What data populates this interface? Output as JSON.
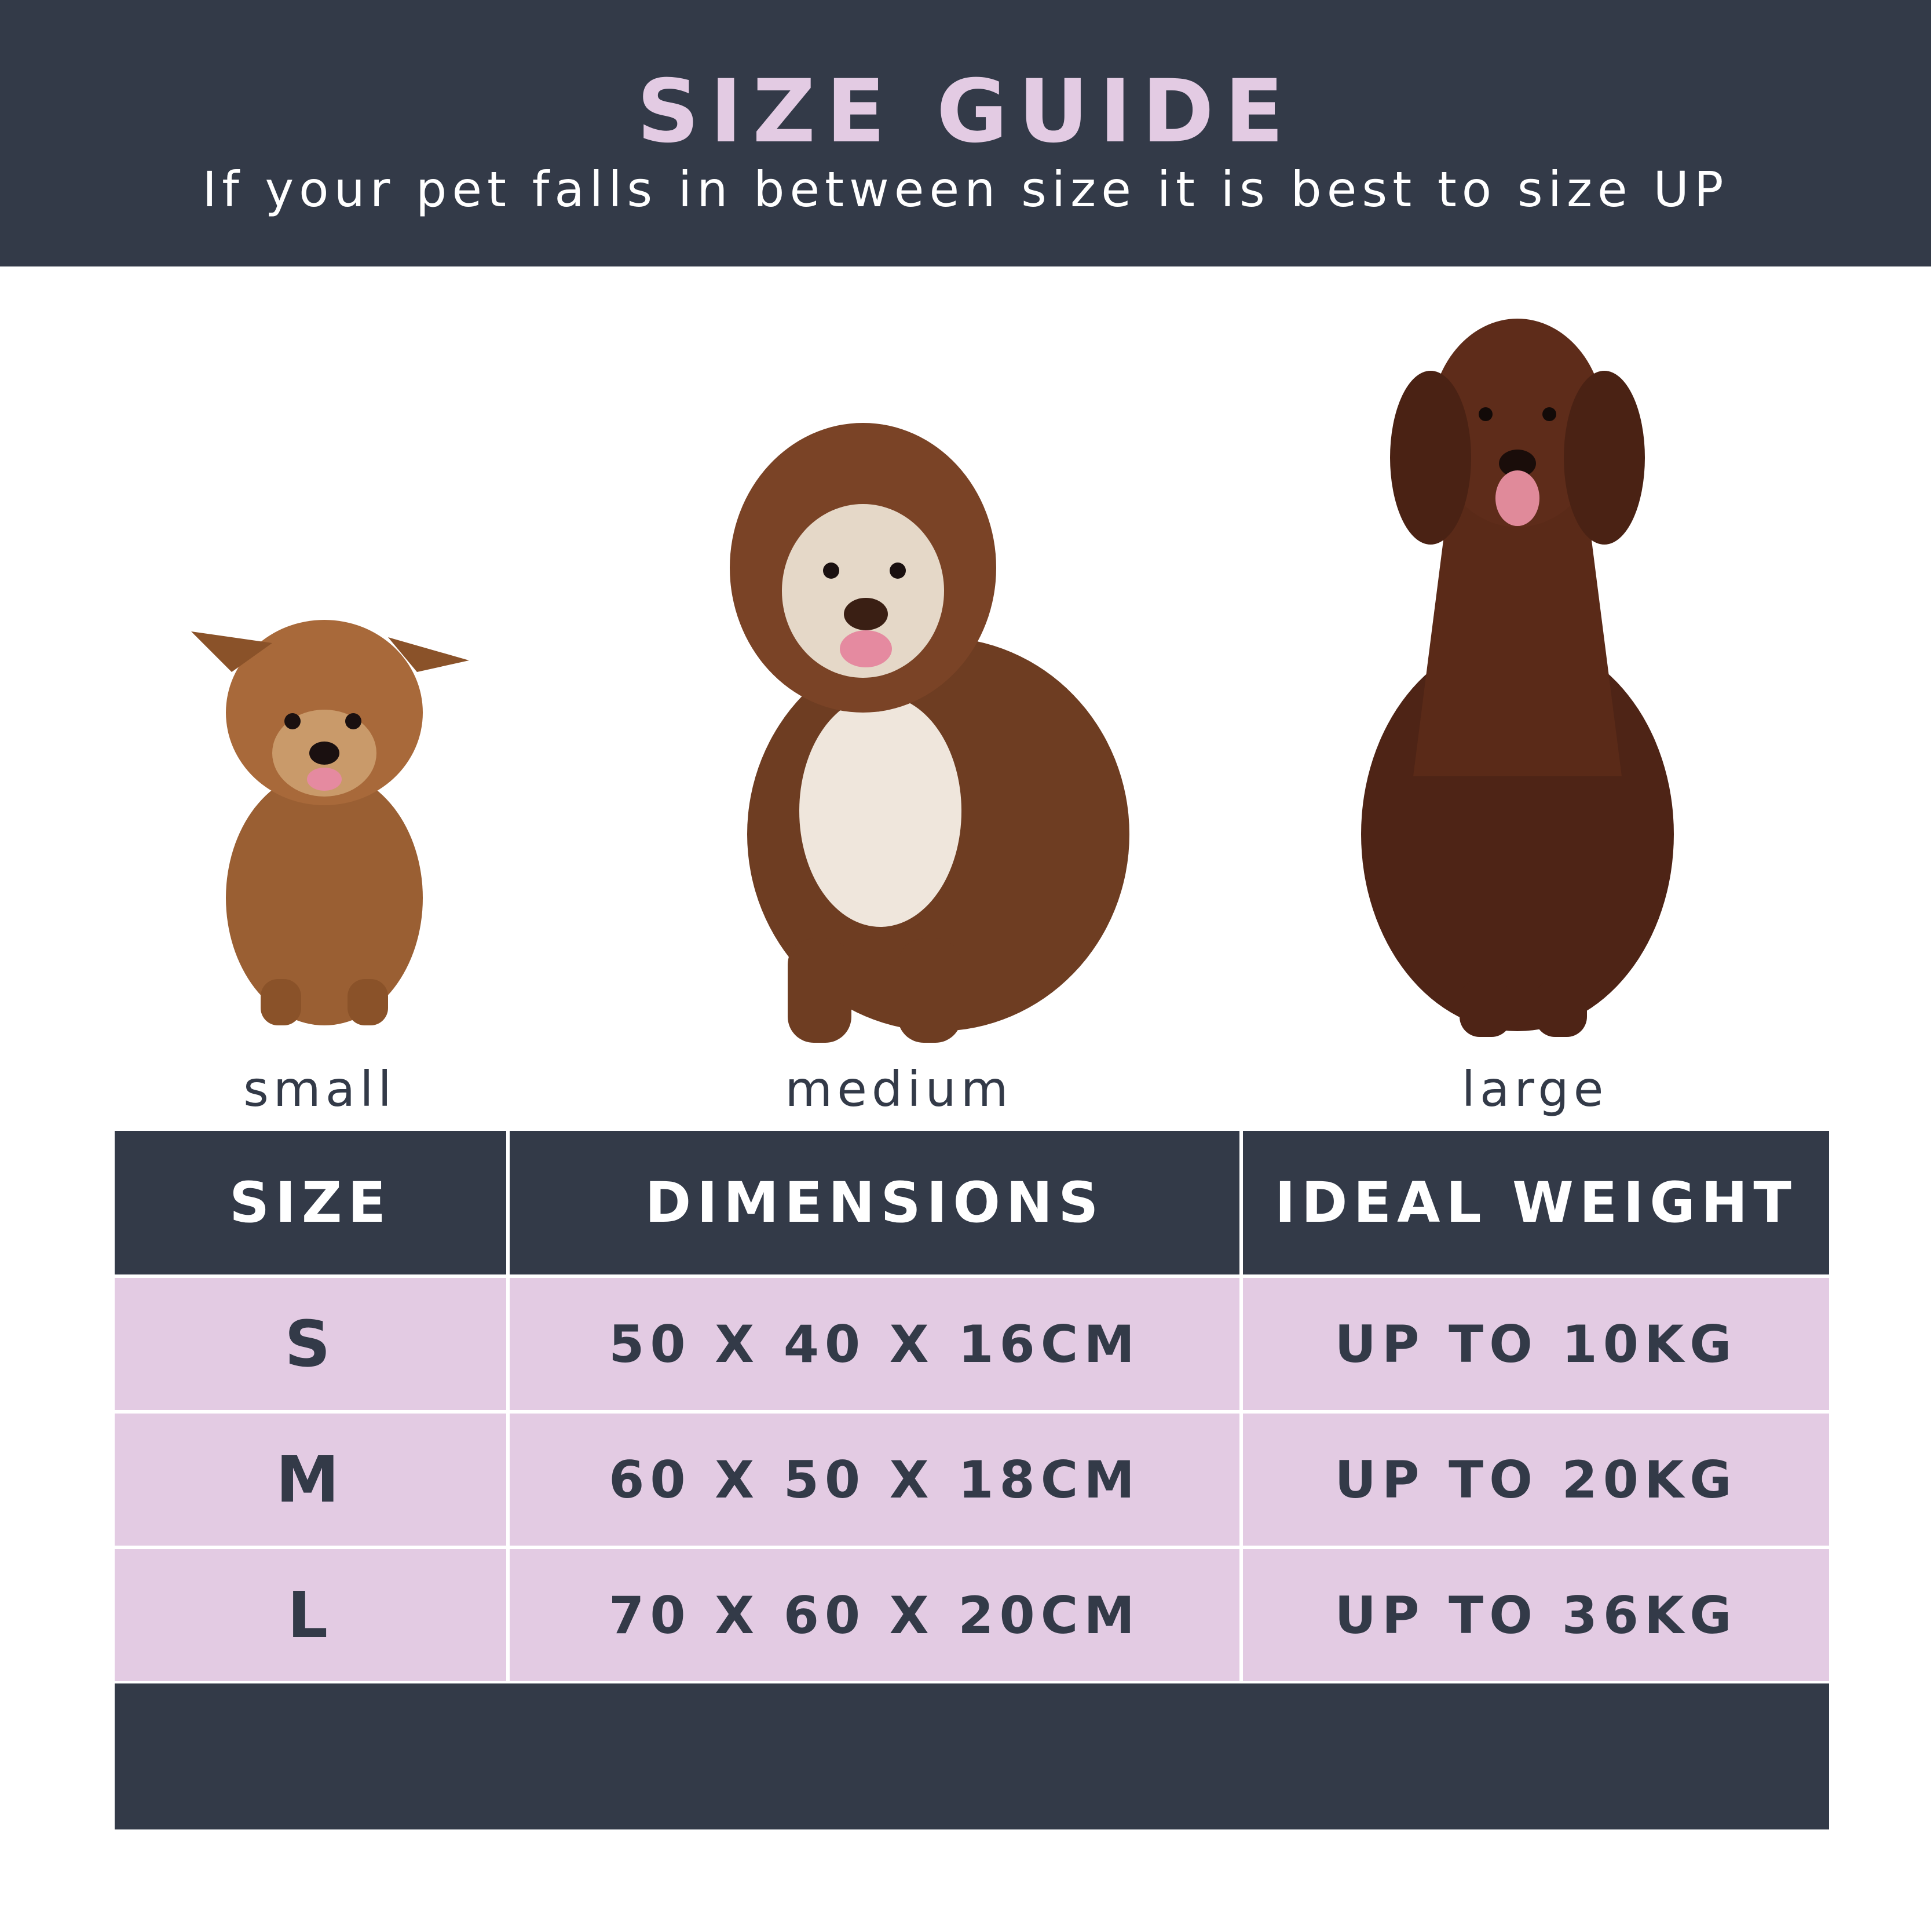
{
  "header": {
    "title": "SIZE GUIDE",
    "subtitle": "If your pet falls in between size it is best to size UP"
  },
  "dogs": [
    {
      "label": "small",
      "icon": "small-dog-photo"
    },
    {
      "label": "medium",
      "icon": "medium-dog-photo"
    },
    {
      "label": "large",
      "icon": "large-dog-photo"
    }
  ],
  "table": {
    "headers": [
      "SIZE",
      "DIMENSIONS",
      "IDEAL WEIGHT"
    ],
    "rows": [
      [
        "S",
        "50 X 40 X 16CM",
        "UP TO 10KG"
      ],
      [
        "M",
        "60 X 50 X 18CM",
        "UP TO 20KG"
      ],
      [
        "L",
        "70 X 60 X 20CM",
        "UP TO 36KG"
      ]
    ]
  },
  "colors": {
    "navy": "#333a48",
    "pink": "#e3cbe3",
    "brown": "#6b3a22"
  }
}
